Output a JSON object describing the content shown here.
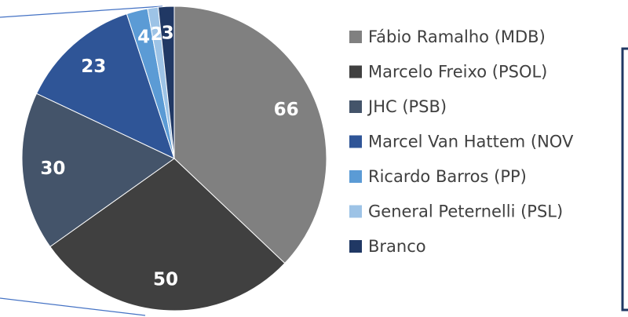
{
  "chart_data": {
    "type": "pie",
    "categories": [
      "Fábio Ramalho (MDB)",
      "Marcelo Freixo (PSOL)",
      "JHC (PSB)",
      "Marcel Van Hattem (NOV",
      "Ricardo Barros (PP)",
      "General Peternelli (PSL)",
      "Branco"
    ],
    "values": [
      66,
      50,
      30,
      23,
      4,
      2,
      3
    ],
    "colors": [
      "#808080",
      "#404040",
      "#44546a",
      "#2f5597",
      "#5b9bd5",
      "#9dc3e6",
      "#203864"
    ]
  }
}
